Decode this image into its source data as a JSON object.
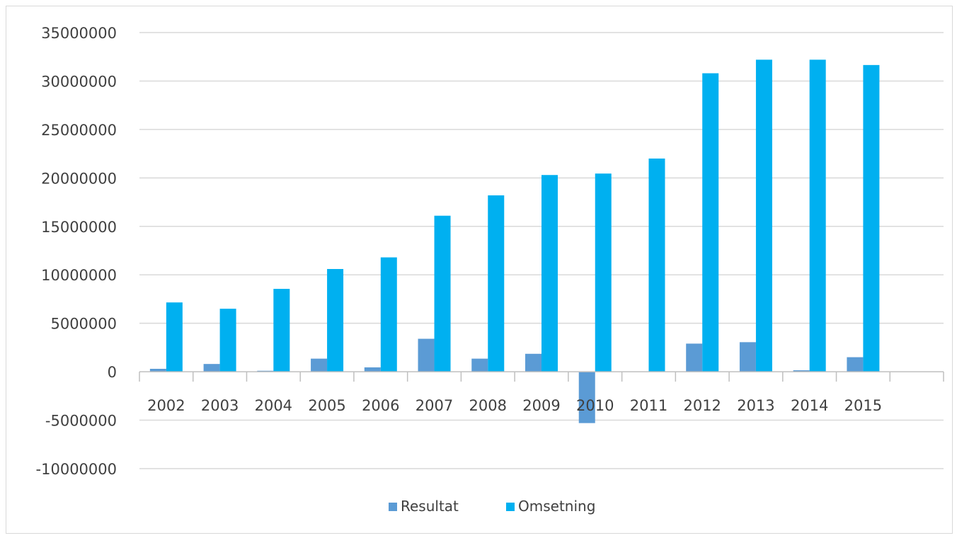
{
  "chart_data": {
    "type": "bar",
    "title": "",
    "xlabel": "",
    "ylabel": "",
    "categories": [
      "2002",
      "2003",
      "2004",
      "2005",
      "2006",
      "2007",
      "2008",
      "2009",
      "2010",
      "2011",
      "2012",
      "2013",
      "2014",
      "2015"
    ],
    "series": [
      {
        "name": "Resultat",
        "color": "#5b9bd5",
        "values": [
          300000,
          800000,
          100000,
          1350000,
          450000,
          3400000,
          1350000,
          1850000,
          -5300000,
          0,
          2900000,
          3050000,
          150000,
          1500000
        ]
      },
      {
        "name": "Omsetning",
        "color": "#00b0f0",
        "values": [
          7150000,
          6500000,
          8550000,
          10600000,
          11800000,
          16100000,
          18200000,
          20300000,
          20450000,
          22000000,
          30800000,
          32200000,
          32200000,
          31650000
        ]
      }
    ],
    "ylim": [
      -10000000,
      35000000
    ],
    "yticks": [
      35000000,
      30000000,
      25000000,
      20000000,
      15000000,
      10000000,
      5000000,
      0,
      -5000000,
      -10000000
    ],
    "grid": true,
    "legend_position": "bottom"
  }
}
